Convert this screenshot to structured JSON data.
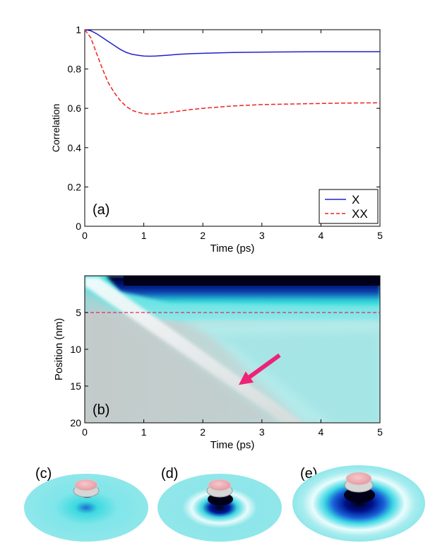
{
  "chart_data": [
    {
      "type": "line",
      "panel": "(a)",
      "xlabel": "Time (ps)",
      "ylabel": "Correlation",
      "xlim": [
        0,
        5
      ],
      "ylim": [
        0,
        1
      ],
      "xticks": [
        "0",
        "1",
        "2",
        "3",
        "4",
        "5"
      ],
      "yticks": [
        "0",
        "0.2",
        "0.4",
        "0.6",
        "0.8",
        "1"
      ],
      "legend_position": "bottom-right",
      "series": [
        {
          "name": "X",
          "color": "#2222cc",
          "style": "solid",
          "x": [
            0,
            0.1,
            0.2,
            0.3,
            0.4,
            0.5,
            0.6,
            0.7,
            0.8,
            0.9,
            1.0,
            1.1,
            1.2,
            1.4,
            1.6,
            1.8,
            2.0,
            2.5,
            3.0,
            3.5,
            4.0,
            4.5,
            5.0
          ],
          "y": [
            1.0,
            0.995,
            0.98,
            0.96,
            0.94,
            0.92,
            0.9,
            0.885,
            0.875,
            0.87,
            0.866,
            0.865,
            0.866,
            0.87,
            0.875,
            0.878,
            0.88,
            0.884,
            0.886,
            0.887,
            0.888,
            0.888,
            0.888
          ]
        },
        {
          "name": "XX",
          "color": "#ee2222",
          "style": "dashed",
          "x": [
            0,
            0.1,
            0.2,
            0.3,
            0.4,
            0.5,
            0.6,
            0.7,
            0.8,
            0.9,
            1.0,
            1.1,
            1.2,
            1.4,
            1.6,
            1.8,
            2.0,
            2.5,
            3.0,
            3.5,
            4.0,
            4.5,
            5.0
          ],
          "y": [
            1.0,
            0.96,
            0.88,
            0.8,
            0.73,
            0.68,
            0.64,
            0.61,
            0.59,
            0.58,
            0.573,
            0.57,
            0.572,
            0.578,
            0.586,
            0.594,
            0.6,
            0.612,
            0.619,
            0.622,
            0.625,
            0.627,
            0.628
          ]
        }
      ]
    },
    {
      "type": "heatmap",
      "panel": "(b)",
      "xlabel": "Time (ps)",
      "ylabel": "Position (nm)",
      "xlim": [
        0,
        5
      ],
      "ylim": [
        20,
        0
      ],
      "xticks": [
        "0",
        "1",
        "2",
        "3",
        "4",
        "5"
      ],
      "yticks": [
        "5",
        "10",
        "15",
        "20"
      ],
      "reference_line": {
        "position_nm": 5,
        "color": "#ee2266",
        "style": "dashed"
      },
      "arrow": {
        "from": {
          "time": 3.3,
          "position": 10.8
        },
        "to": {
          "time": 2.7,
          "position": 14.3
        },
        "color": "#ee2277"
      },
      "colors": {
        "dark": "#000022",
        "deep_blue": "#0010a0",
        "cyan": "#33dddd",
        "light_cyan": "#bff0f0",
        "gray": "#c8cfce",
        "white_band": "#f2f2f2"
      }
    }
  ],
  "panels": {
    "c": {
      "label": "(c)"
    },
    "d": {
      "label": "(d)"
    },
    "e": {
      "label": "(e)"
    }
  }
}
